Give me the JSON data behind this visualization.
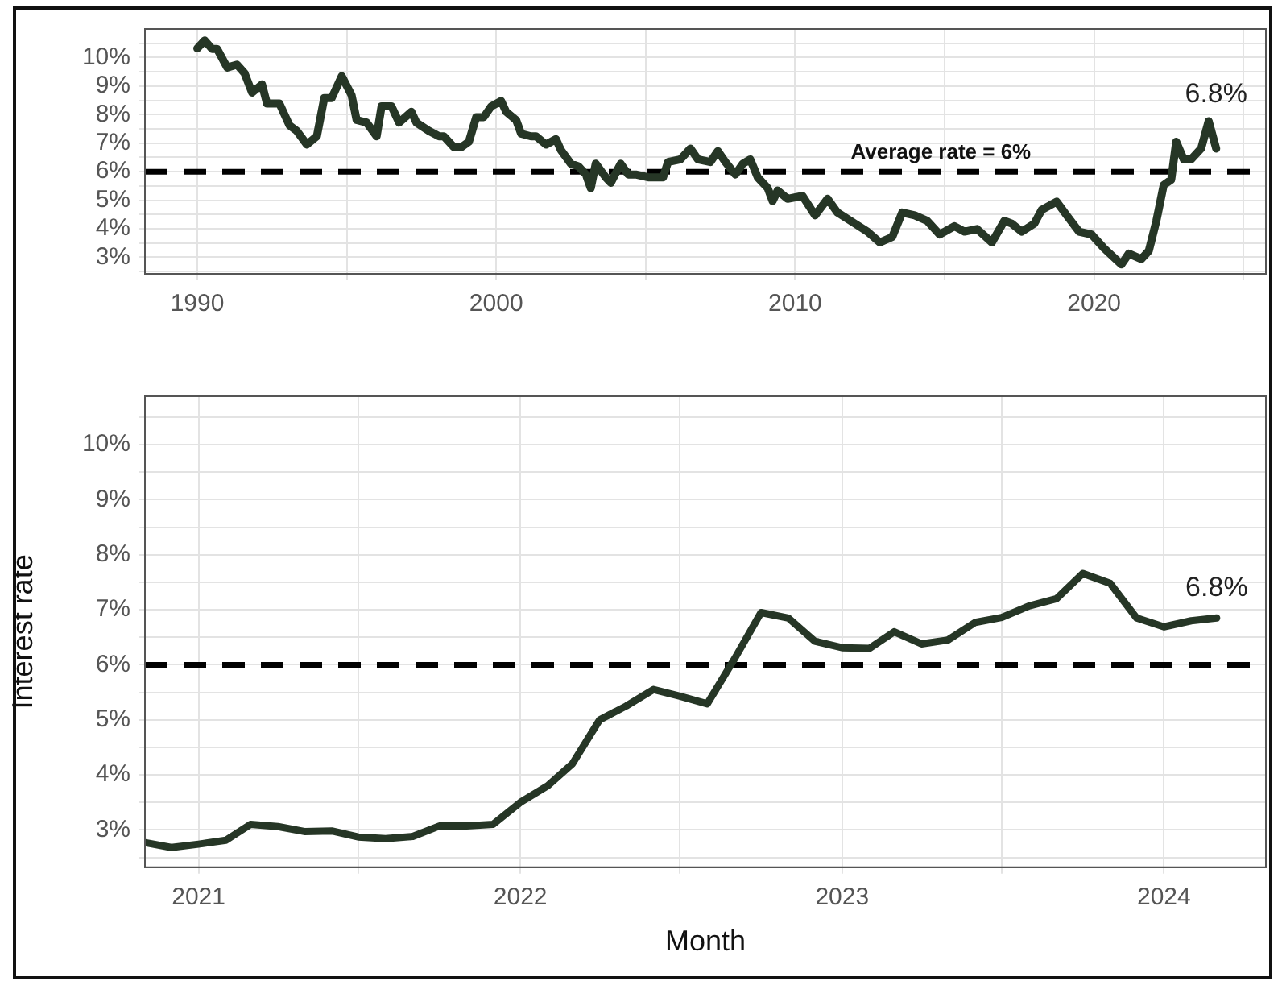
{
  "chart_data": [
    {
      "type": "line",
      "xlim": [
        "1988-04",
        "2025-10"
      ],
      "ylim": [
        2.42,
        11.0
      ],
      "xticks": [
        "1990",
        {
          "value": "1995",
          "label": null
        },
        "2000",
        {
          "value": "2005",
          "label": null
        },
        "2010",
        {
          "value": "2015",
          "label": null
        },
        "2020",
        {
          "value": "2025",
          "label": null
        }
      ],
      "yticks": [
        {
          "value": 2.5,
          "label": null
        },
        {
          "value": 3,
          "label": "3%"
        },
        {
          "value": 3.5,
          "label": null
        },
        {
          "value": 4,
          "label": "4%"
        },
        {
          "value": 4.5,
          "label": null
        },
        {
          "value": 5,
          "label": "5%"
        },
        {
          "value": 5.5,
          "label": null
        },
        {
          "value": 6,
          "label": "6%"
        },
        {
          "value": 6.5,
          "label": null
        },
        {
          "value": 7,
          "label": "7%"
        },
        {
          "value": 7.5,
          "label": null
        },
        {
          "value": 8,
          "label": "8%"
        },
        {
          "value": 8.5,
          "label": null
        },
        {
          "value": 9,
          "label": "9%"
        },
        {
          "value": 9.5,
          "label": null
        },
        {
          "value": 10,
          "label": "10%"
        },
        {
          "value": 10.5,
          "label": null
        }
      ],
      "grid": true,
      "legend": false,
      "line_style": "solid",
      "marker": "none",
      "ref_lines": [
        {
          "axis": "y",
          "value": 6,
          "label": "Average rate = 6%",
          "color": "#000000",
          "line_style": "dashed"
        }
      ],
      "annotations": [
        {
          "text": "6.8%",
          "x": "2024-02",
          "y": 6.81
        }
      ],
      "series": [
        {
          "color": "#263626",
          "x": [
            "1990-01",
            "1990-04",
            "1990-07",
            "1990-09",
            "1991-01",
            "1991-05",
            "1991-08",
            "1991-11",
            "1992-03",
            "1992-05",
            "1992-10",
            "1993-02",
            "1993-05",
            "1993-09",
            "1994-01",
            "1994-04",
            "1994-07",
            "1994-11",
            "1995-03",
            "1995-05",
            "1995-09",
            "1996-01",
            "1996-03",
            "1996-07",
            "1996-10",
            "1997-03",
            "1997-05",
            "1997-10",
            "1998-02",
            "1998-04",
            "1998-08",
            "1998-11",
            "1999-02",
            "1999-05",
            "1999-08",
            "1999-11",
            "2000-03",
            "2000-05",
            "2000-09",
            "2000-11",
            "2001-03",
            "2001-05",
            "2001-09",
            "2002-01",
            "2002-03",
            "2002-07",
            "2002-10",
            "2003-01",
            "2003-03",
            "2003-05",
            "2003-09",
            "2003-11",
            "2004-03",
            "2004-06",
            "2004-09",
            "2005-02",
            "2005-08",
            "2005-10",
            "2006-03",
            "2006-07",
            "2006-10",
            "2007-03",
            "2007-06",
            "2007-09",
            "2008-01",
            "2008-04",
            "2008-07",
            "2008-10",
            "2009-02",
            "2009-04",
            "2009-06",
            "2009-10",
            "2010-04",
            "2010-09",
            "2011-02",
            "2011-06",
            "2012-01",
            "2012-06",
            "2012-11",
            "2013-04",
            "2013-08",
            "2014-01",
            "2014-06",
            "2014-11",
            "2015-05",
            "2015-09",
            "2016-02",
            "2016-08",
            "2017-01",
            "2017-04",
            "2017-08",
            "2018-01",
            "2018-04",
            "2018-10",
            "2019-02",
            "2019-07",
            "2019-12",
            "2020-05",
            "2020-12",
            "2021-03",
            "2021-08",
            "2021-11",
            "2022-02",
            "2022-05",
            "2022-08",
            "2022-10",
            "2023-01",
            "2023-04",
            "2023-08",
            "2023-11",
            "2024-02"
          ],
          "values": [
            10.32,
            10.6,
            10.3,
            10.3,
            9.65,
            9.75,
            9.45,
            8.77,
            9.06,
            8.39,
            8.39,
            7.62,
            7.43,
            6.95,
            7.24,
            8.58,
            8.58,
            9.35,
            8.68,
            7.81,
            7.72,
            7.24,
            8.29,
            8.29,
            7.72,
            8.1,
            7.72,
            7.43,
            7.24,
            7.24,
            6.86,
            6.86,
            7.05,
            7.91,
            7.91,
            8.29,
            8.48,
            8.1,
            7.81,
            7.33,
            7.24,
            7.24,
            6.95,
            7.14,
            6.76,
            6.28,
            6.19,
            5.9,
            5.42,
            6.28,
            5.8,
            5.61,
            6.28,
            5.9,
            5.9,
            5.8,
            5.8,
            6.34,
            6.43,
            6.81,
            6.43,
            6.34,
            6.72,
            6.34,
            5.9,
            6.28,
            6.43,
            5.8,
            5.42,
            4.97,
            5.34,
            5.05,
            5.15,
            4.47,
            5.05,
            4.57,
            4.18,
            3.9,
            3.52,
            3.71,
            4.57,
            4.47,
            4.28,
            3.8,
            4.09,
            3.9,
            3.99,
            3.52,
            4.28,
            4.18,
            3.9,
            4.18,
            4.66,
            4.95,
            4.47,
            3.9,
            3.8,
            3.32,
            2.75,
            3.13,
            2.94,
            3.23,
            4.28,
            5.53,
            5.72,
            7.05,
            6.43,
            6.43,
            6.81,
            7.77,
            6.81
          ]
        }
      ]
    },
    {
      "type": "line",
      "xlabel": "Month",
      "ylabel": "Interest rate",
      "xlim": [
        "2020-11",
        "2024-04-26"
      ],
      "ylim": [
        2.32,
        10.88
      ],
      "xticks": [
        "2021",
        {
          "value": "2021-07",
          "label": null
        },
        "2022",
        {
          "value": "2022-07",
          "label": null
        },
        "2023",
        {
          "value": "2023-07",
          "label": null
        },
        "2024"
      ],
      "yticks": [
        {
          "value": 2.5,
          "label": null
        },
        {
          "value": 3,
          "label": "3%"
        },
        {
          "value": 3.5,
          "label": null
        },
        {
          "value": 4,
          "label": "4%"
        },
        {
          "value": 4.5,
          "label": null
        },
        {
          "value": 5,
          "label": "5%"
        },
        {
          "value": 5.5,
          "label": null
        },
        {
          "value": 6,
          "label": "6%"
        },
        {
          "value": 6.5,
          "label": null
        },
        {
          "value": 7,
          "label": "7%"
        },
        {
          "value": 7.5,
          "label": null
        },
        {
          "value": 8,
          "label": "8%"
        },
        {
          "value": 8.5,
          "label": null
        },
        {
          "value": 9,
          "label": "9%"
        },
        {
          "value": 9.5,
          "label": null
        },
        {
          "value": 10,
          "label": "10%"
        },
        {
          "value": 10.5,
          "label": null
        }
      ],
      "grid": true,
      "legend": false,
      "line_style": "solid",
      "marker": "none",
      "ref_lines": [
        {
          "axis": "y",
          "value": 6,
          "color": "#000000",
          "line_style": "dashed"
        }
      ],
      "annotations": [
        {
          "text": "6.8%",
          "x": "2024-03",
          "y": 6.85
        }
      ],
      "series": [
        {
          "color": "#263626",
          "x": [
            "2020-11",
            "2020-12",
            "2021-01",
            "2021-02",
            "2021-03",
            "2021-04",
            "2021-05",
            "2021-06",
            "2021-07",
            "2021-08",
            "2021-09",
            "2021-10",
            "2021-11",
            "2021-12",
            "2022-01",
            "2022-02",
            "2022-03",
            "2022-04",
            "2022-05",
            "2022-06",
            "2022-07",
            "2022-08",
            "2022-09",
            "2022-10",
            "2022-11",
            "2022-12",
            "2023-01",
            "2023-02",
            "2023-03",
            "2023-04",
            "2023-05",
            "2023-06",
            "2023-07",
            "2023-08",
            "2023-09",
            "2023-10",
            "2023-11",
            "2023-12",
            "2024-01",
            "2024-02",
            "2024-03"
          ],
          "values": [
            2.77,
            2.68,
            2.74,
            2.81,
            3.1,
            3.06,
            2.97,
            2.98,
            2.87,
            2.84,
            2.88,
            3.07,
            3.07,
            3.1,
            3.5,
            3.8,
            4.2,
            5.0,
            5.25,
            5.55,
            5.43,
            5.29,
            6.11,
            6.95,
            6.85,
            6.43,
            6.31,
            6.3,
            6.6,
            6.38,
            6.45,
            6.77,
            6.86,
            7.07,
            7.2,
            7.66,
            7.48,
            6.85,
            6.69,
            6.8,
            6.85
          ]
        }
      ]
    }
  ]
}
